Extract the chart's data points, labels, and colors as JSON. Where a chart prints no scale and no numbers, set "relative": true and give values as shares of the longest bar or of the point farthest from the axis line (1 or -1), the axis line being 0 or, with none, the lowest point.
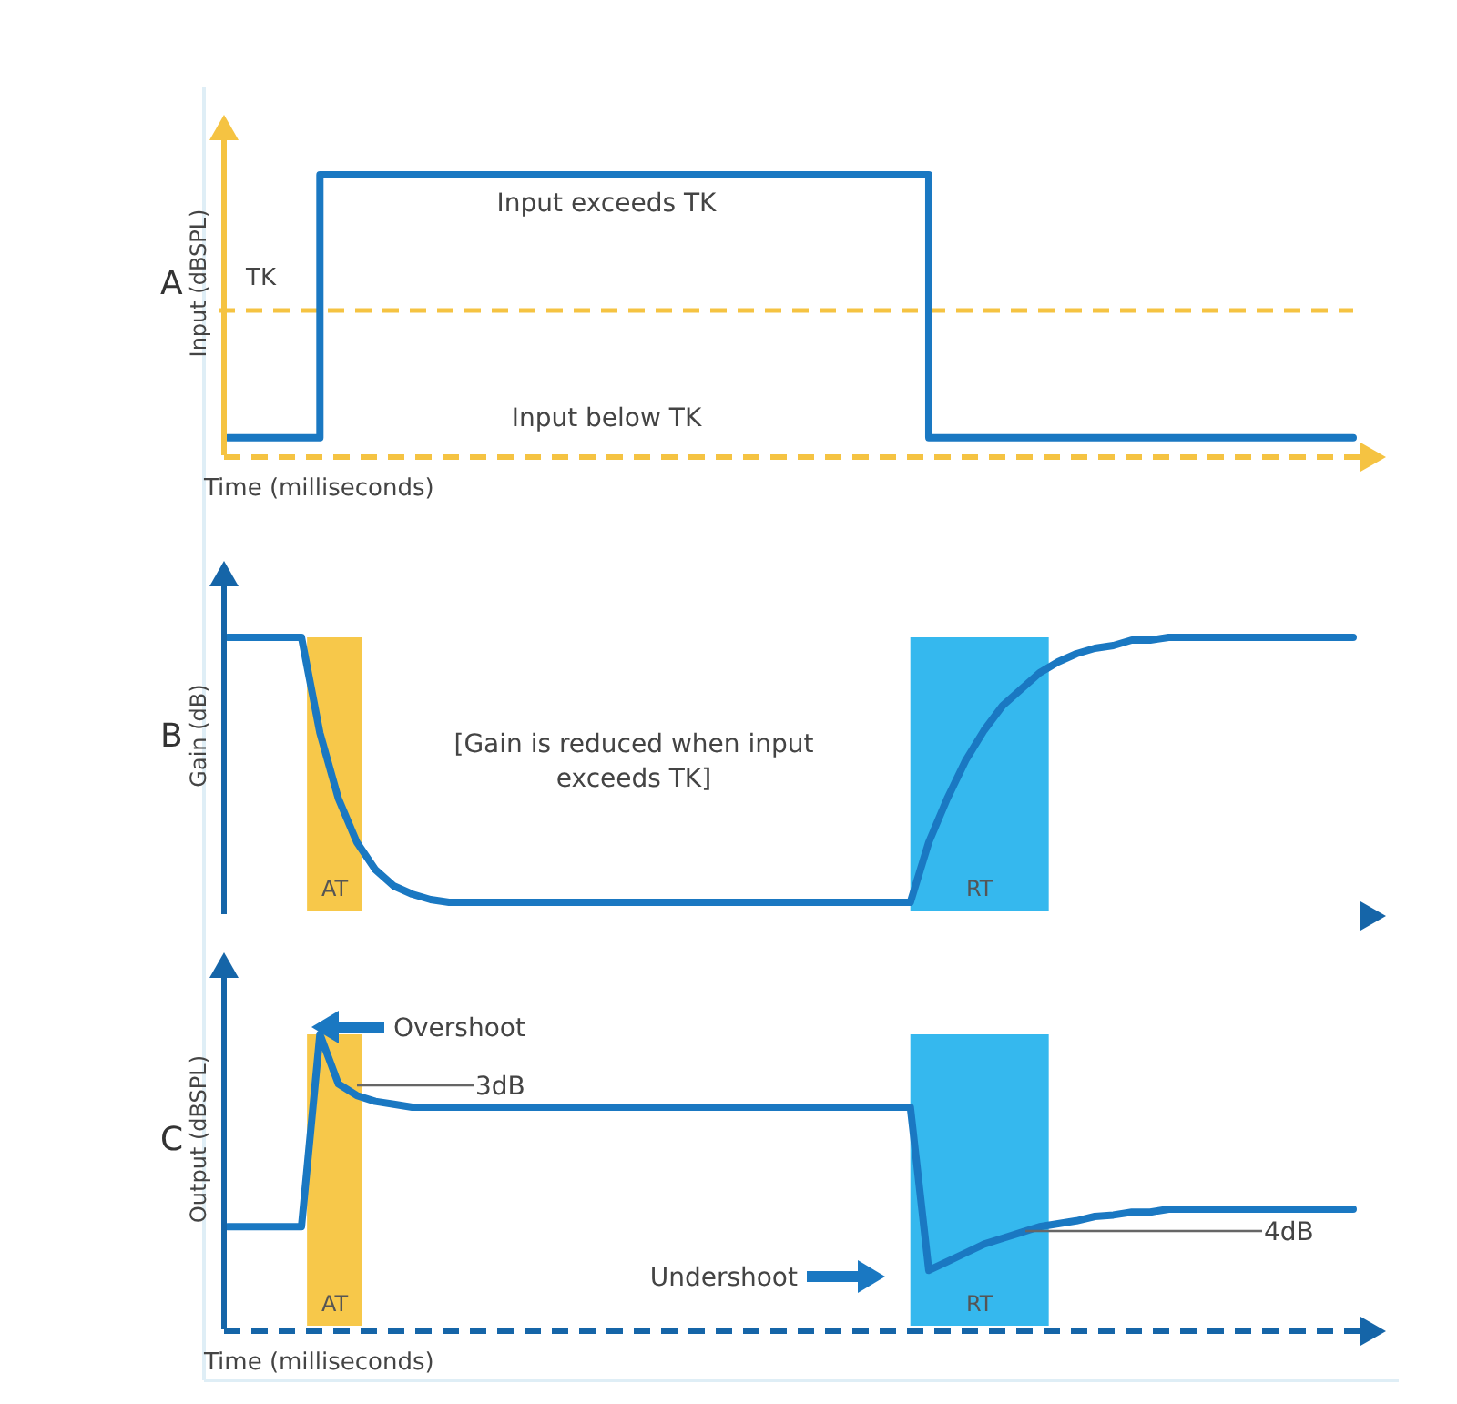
{
  "chart_data": [
    {
      "type": "step",
      "title": "A",
      "ylabel": "Input (dBSPL)",
      "xlabel": "Time (milliseconds)",
      "relative": true,
      "categories": [
        null,
        null,
        null,
        null,
        null,
        null,
        null,
        null,
        null,
        null,
        null,
        null,
        null,
        null,
        null,
        null,
        null,
        null,
        null,
        null,
        null,
        null,
        null,
        null,
        null,
        null,
        null,
        null,
        null,
        null,
        null,
        null,
        null,
        null,
        null,
        null,
        null,
        null,
        null,
        null,
        null,
        null,
        null,
        null,
        null,
        null,
        null,
        null,
        null,
        null,
        null,
        null,
        null,
        null,
        null,
        null,
        null,
        null,
        null,
        null,
        null,
        null
      ],
      "series": [
        {
          "color": "#1a78c2",
          "values": [
            0.05,
            0.05,
            0.05,
            0.05,
            0.05,
            1,
            1,
            1,
            1,
            1,
            1,
            1,
            1,
            1,
            1,
            1,
            1,
            1,
            1,
            1,
            1,
            1,
            1,
            1,
            1,
            1,
            1,
            1,
            1,
            1,
            1,
            1,
            1,
            1,
            1,
            1,
            1,
            1,
            0.05,
            0.05,
            0.05,
            0.05,
            0.05,
            0.05,
            0.05,
            0.05,
            0.05,
            0.05,
            0.05,
            0.05,
            0.05,
            0.05,
            0.05,
            0.05,
            0.05,
            0.05,
            0.05,
            0.05,
            0.05,
            0.05,
            0.05,
            0.05
          ]
        }
      ],
      "ref_lines": [
        {
          "axis": "y",
          "value": 0.51,
          "label": "TK",
          "color": "#f5c342",
          "line_style": "dashed"
        }
      ],
      "annotations": [
        "Input exceeds TK",
        "Input below TK"
      ]
    },
    {
      "type": "line",
      "title": "B",
      "ylabel": "Gain (dB)",
      "relative": true,
      "categories": [
        null,
        null,
        null,
        null,
        null,
        null,
        null,
        null,
        null,
        null,
        null,
        null,
        null,
        null,
        null,
        null,
        null,
        null,
        null,
        null,
        null,
        null,
        null,
        null,
        null,
        null,
        null,
        null,
        null,
        null,
        null,
        null,
        null,
        null,
        null,
        null,
        null,
        null,
        null,
        null,
        null,
        null,
        null,
        null,
        null,
        null,
        null,
        null,
        null,
        null,
        null,
        null,
        null,
        null,
        null,
        null,
        null,
        null,
        null,
        null,
        null,
        null
      ],
      "series": [
        {
          "color": "#1a78c2",
          "values": [
            1,
            1,
            1,
            1,
            1,
            0.65,
            0.41,
            0.25,
            0.15,
            0.09,
            0.06,
            0.04,
            0.03,
            0.03,
            0.03,
            0.03,
            0.03,
            0.03,
            0.03,
            0.03,
            0.03,
            0.03,
            0.03,
            0.03,
            0.03,
            0.03,
            0.03,
            0.03,
            0.03,
            0.03,
            0.03,
            0.03,
            0.03,
            0.03,
            0.03,
            0.03,
            0.03,
            0.03,
            0.25,
            0.41,
            0.55,
            0.66,
            0.75,
            0.81,
            0.87,
            0.91,
            0.94,
            0.96,
            0.97,
            0.99,
            0.99,
            1,
            1,
            1,
            1,
            1,
            1,
            1,
            1,
            1,
            1,
            1
          ]
        }
      ],
      "annotations": [
        "[Gain is reduced when input exceeds TK]",
        "AT",
        "RT"
      ]
    },
    {
      "type": "line",
      "title": "C",
      "ylabel": "Output (dBSPL)",
      "xlabel": "Time (milliseconds)",
      "relative": true,
      "categories": [
        null,
        null,
        null,
        null,
        null,
        null,
        null,
        null,
        null,
        null,
        null,
        null,
        null,
        null,
        null,
        null,
        null,
        null,
        null,
        null,
        null,
        null,
        null,
        null,
        null,
        null,
        null,
        null,
        null,
        null,
        null,
        null,
        null,
        null,
        null,
        null,
        null,
        null,
        null,
        null,
        null,
        null,
        null,
        null,
        null,
        null,
        null,
        null,
        null,
        null,
        null,
        null,
        null,
        null,
        null,
        null,
        null,
        null,
        null,
        null,
        null,
        null
      ],
      "series": [
        {
          "color": "#1a78c2",
          "values": [
            0.34,
            0.34,
            0.34,
            0.34,
            0.34,
            1,
            0.83,
            0.79,
            0.77,
            0.76,
            0.75,
            0.75,
            0.75,
            0.75,
            0.75,
            0.75,
            0.75,
            0.75,
            0.75,
            0.75,
            0.75,
            0.75,
            0.75,
            0.75,
            0.75,
            0.75,
            0.75,
            0.75,
            0.75,
            0.75,
            0.75,
            0.75,
            0.75,
            0.75,
            0.75,
            0.75,
            0.75,
            0.75,
            0.19,
            0.22,
            0.25,
            0.28,
            0.3,
            0.32,
            0.34,
            0.35,
            0.36,
            0.375,
            0.38,
            0.39,
            0.39,
            0.4,
            0.4,
            0.4,
            0.4,
            0.4,
            0.4,
            0.4,
            0.4,
            0.4,
            0.4,
            0.4
          ]
        }
      ],
      "annotations": [
        "Overshoot",
        "3dB",
        "Undershoot",
        "4dB",
        "AT",
        "RT"
      ]
    }
  ]
}
